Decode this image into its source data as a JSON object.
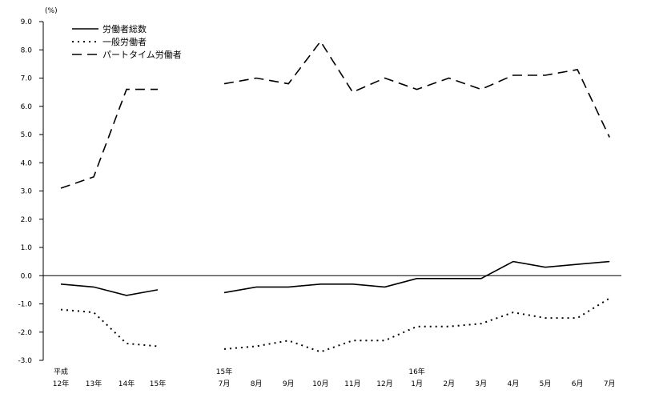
{
  "chart_data": {
    "type": "line",
    "ylabel": "(%)",
    "ylim": [
      -3.0,
      9.0
    ],
    "y_ticks": [
      "9.0",
      "8.0",
      "7.0",
      "6.0",
      "5.0",
      "4.0",
      "3.0",
      "2.0",
      "1.0",
      "0.0",
      "-1.0",
      "-2.0",
      "-3.0"
    ],
    "x_labels": [
      {
        "top": "平成",
        "bottom": "12年"
      },
      {
        "top": "",
        "bottom": "13年"
      },
      {
        "top": "",
        "bottom": "14年"
      },
      {
        "top": "",
        "bottom": "15年"
      },
      {
        "top": "15年",
        "bottom": "7月"
      },
      {
        "top": "",
        "bottom": "8月"
      },
      {
        "top": "",
        "bottom": "9月"
      },
      {
        "top": "",
        "bottom": "10月"
      },
      {
        "top": "",
        "bottom": "11月"
      },
      {
        "top": "",
        "bottom": "12月"
      },
      {
        "top": "16年",
        "bottom": "1月"
      },
      {
        "top": "",
        "bottom": "2月"
      },
      {
        "top": "",
        "bottom": "3月"
      },
      {
        "top": "",
        "bottom": "4月"
      },
      {
        "top": "",
        "bottom": "5月"
      },
      {
        "top": "",
        "bottom": "6月"
      },
      {
        "top": "",
        "bottom": "7月"
      }
    ],
    "series": [
      {
        "name": "労働者総数",
        "style": "solid",
        "color": "#000000",
        "segments": [
          [
            -0.3,
            -0.4,
            -0.7,
            -0.5
          ],
          [
            -0.6,
            -0.4,
            -0.4,
            -0.3,
            -0.3,
            -0.4,
            -0.1,
            -0.1,
            -0.1,
            0.5,
            0.3,
            0.4,
            0.5
          ]
        ]
      },
      {
        "name": "一般労働者",
        "style": "dotted",
        "color": "#000000",
        "segments": [
          [
            -1.2,
            -1.3,
            -2.4,
            -2.5
          ],
          [
            -2.6,
            -2.5,
            -2.3,
            -2.7,
            -2.3,
            -2.3,
            -1.8,
            -1.8,
            -1.7,
            -1.3,
            -1.5,
            -1.5,
            -0.8
          ]
        ]
      },
      {
        "name": "パートタイム労働者",
        "style": "dashed",
        "color": "#000000",
        "segments": [
          [
            3.1,
            3.5,
            6.6,
            6.6
          ],
          [
            6.8,
            7.0,
            6.8,
            8.3,
            6.5,
            7.0,
            6.6,
            7.0,
            6.6,
            7.1,
            7.1,
            7.3,
            4.9
          ]
        ]
      }
    ],
    "legend_position": "top-left",
    "grid": false
  }
}
